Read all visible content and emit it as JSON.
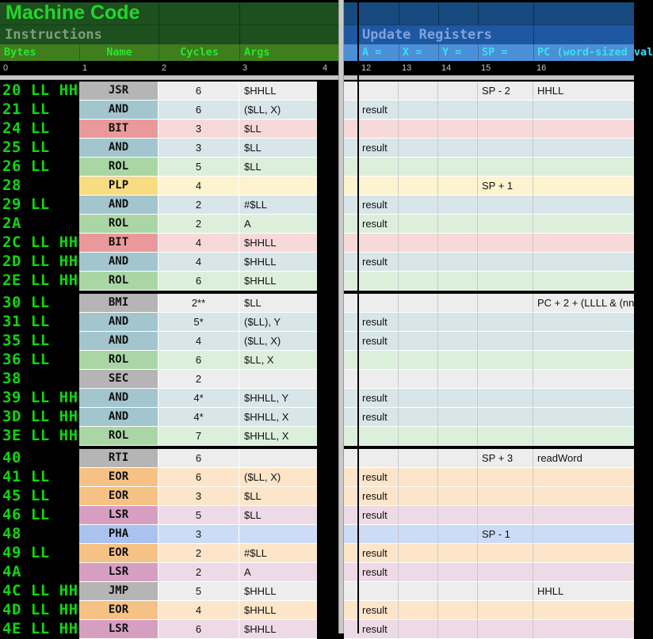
{
  "left_header": {
    "title": "Machine Code",
    "subtitle": "Instructions",
    "columns": [
      "Bytes",
      "Name",
      "Cycles",
      "Args"
    ],
    "ruler": [
      "0",
      "1",
      "2",
      "3",
      "4"
    ]
  },
  "right_header": {
    "title": "Update Registers",
    "columns": [
      "A =",
      "X =",
      "Y =",
      "SP =",
      "PC (word-sized val"
    ],
    "ruler": [
      "12",
      "13",
      "14",
      "15",
      "16"
    ]
  },
  "colors": {
    "header_green_dark": "#1d4f1f",
    "header_green_title": "#24d52b",
    "header_green_subtitle": "#7d9e79",
    "header_green_cols_bg": "#3e7e1f",
    "header_green_cols_text": "#2de42d",
    "header_blue_dark": "#174a7e",
    "header_blue_mid": "#1e57a2",
    "header_blue_title": "#7fa3dc",
    "header_blue_cols_bg": "#4b90d7",
    "header_blue_cols_text": "#3fdef2",
    "bytes_text_green": "#0fd60f",
    "ruler_text": "#c4c4c4",
    "palette": {
      "gray": {
        "strong": "#b5b5b5",
        "light": "#ededed"
      },
      "teal": {
        "strong": "#a2c5ce",
        "light": "#d8e5e9"
      },
      "red": {
        "strong": "#ea999b",
        "light": "#f8d9da"
      },
      "green": {
        "strong": "#a9d6a4",
        "light": "#dcefdb"
      },
      "yellow": {
        "strong": "#f8dc82",
        "light": "#fdf3cf"
      },
      "orange": {
        "strong": "#f6c185",
        "light": "#fce5c9"
      },
      "mauve": {
        "strong": "#d69fc2",
        "light": "#eedae6"
      },
      "blue": {
        "strong": "#a9c3ee",
        "light": "#cddcf6"
      }
    }
  },
  "rows": [
    {
      "bytes": "20 LL HH",
      "name": "JSR",
      "cycles": "6",
      "args": "$HHLL",
      "color": "gray",
      "sp": "SP - 2",
      "pc": "HHLL"
    },
    {
      "bytes": "21 LL",
      "name": "AND",
      "cycles": "6",
      "args": "($LL, X)",
      "color": "teal",
      "a": "result"
    },
    {
      "bytes": "24 LL",
      "name": "BIT",
      "cycles": "3",
      "args": "$LL",
      "color": "red"
    },
    {
      "bytes": "25 LL",
      "name": "AND",
      "cycles": "3",
      "args": "$LL",
      "color": "teal",
      "a": "result"
    },
    {
      "bytes": "26 LL",
      "name": "ROL",
      "cycles": "5",
      "args": "$LL",
      "color": "green"
    },
    {
      "bytes": "28",
      "name": "PLP",
      "cycles": "4",
      "args": "",
      "color": "yellow",
      "sp": "SP + 1"
    },
    {
      "bytes": "29 LL",
      "name": "AND",
      "cycles": "2",
      "args": "#$LL",
      "color": "teal",
      "a": "result"
    },
    {
      "bytes": "2A",
      "name": "ROL",
      "cycles": "2",
      "args": "A",
      "color": "green",
      "a": "result"
    },
    {
      "bytes": "2C LL HH",
      "name": "BIT",
      "cycles": "4",
      "args": "$HHLL",
      "color": "red"
    },
    {
      "bytes": "2D LL HH",
      "name": "AND",
      "cycles": "4",
      "args": "$HHLL",
      "color": "teal",
      "a": "result"
    },
    {
      "bytes": "2E LL HH",
      "name": "ROL",
      "cycles": "6",
      "args": "$HHLL",
      "color": "green"
    },
    {
      "bytes": "30 LL",
      "name": "BMI",
      "cycles": "2**",
      "args": "$LL",
      "color": "gray",
      "pc": "PC + 2 + (LLLL & (nn",
      "block_start": true
    },
    {
      "bytes": "31 LL",
      "name": "AND",
      "cycles": "5*",
      "args": "($LL), Y",
      "color": "teal",
      "a": "result"
    },
    {
      "bytes": "35 LL",
      "name": "AND",
      "cycles": "4",
      "args": "($LL, X)",
      "color": "teal",
      "a": "result"
    },
    {
      "bytes": "36 LL",
      "name": "ROL",
      "cycles": "6",
      "args": "$LL, X",
      "color": "green"
    },
    {
      "bytes": "38",
      "name": "SEC",
      "cycles": "2",
      "args": "",
      "color": "gray"
    },
    {
      "bytes": "39 LL HH",
      "name": "AND",
      "cycles": "4*",
      "args": "$HHLL, Y",
      "color": "teal",
      "a": "result"
    },
    {
      "bytes": "3D LL HH",
      "name": "AND",
      "cycles": "4*",
      "args": "$HHLL, X",
      "color": "teal",
      "a": "result"
    },
    {
      "bytes": "3E LL HH",
      "name": "ROL",
      "cycles": "7",
      "args": "$HHLL, X",
      "color": "green"
    },
    {
      "bytes": "40",
      "name": "RTI",
      "cycles": "6",
      "args": "",
      "color": "gray",
      "sp": "SP + 3",
      "pc": "readWord",
      "block_start": true
    },
    {
      "bytes": "41 LL",
      "name": "EOR",
      "cycles": "6",
      "args": "($LL, X)",
      "color": "orange",
      "a": "result"
    },
    {
      "bytes": "45 LL",
      "name": "EOR",
      "cycles": "3",
      "args": "$LL",
      "color": "orange",
      "a": "result"
    },
    {
      "bytes": "46 LL",
      "name": "LSR",
      "cycles": "5",
      "args": "$LL",
      "color": "mauve",
      "a": "result"
    },
    {
      "bytes": "48",
      "name": "PHA",
      "cycles": "3",
      "args": "",
      "color": "blue",
      "sp": "SP - 1"
    },
    {
      "bytes": "49 LL",
      "name": "EOR",
      "cycles": "2",
      "args": "#$LL",
      "color": "orange",
      "a": "result"
    },
    {
      "bytes": "4A",
      "name": "LSR",
      "cycles": "2",
      "args": "A",
      "color": "mauve",
      "a": "result"
    },
    {
      "bytes": "4C LL HH",
      "name": "JMP",
      "cycles": "5",
      "args": "$HHLL",
      "color": "gray",
      "pc": "HHLL"
    },
    {
      "bytes": "4D LL HH",
      "name": "EOR",
      "cycles": "4",
      "args": "$HHLL",
      "color": "orange",
      "a": "result"
    },
    {
      "bytes": "4E LL HH",
      "name": "LSR",
      "cycles": "6",
      "args": "$HHLL",
      "color": "mauve",
      "a": "result"
    }
  ]
}
